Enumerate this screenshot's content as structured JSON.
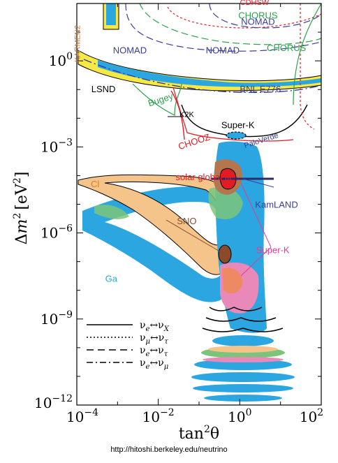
{
  "chart_data": {
    "type": "scatter",
    "xscale": "log",
    "yscale": "log",
    "xlim": [
      0.0001,
      100
    ],
    "ylim": [
      1e-12,
      100
    ],
    "xlabel_base": "tan",
    "xlabel_exp": "2",
    "xlabel_sym": "θ",
    "ylabel_delta": "Δ",
    "ylabel_m": "m",
    "ylabel_exp": "2",
    "ylabel_unit": "[eV",
    "ylabel_unit_exp": "2",
    "ylabel_close": "]",
    "xticks": [
      {
        "value": 0.0001,
        "base": "10",
        "exp": "−4"
      },
      {
        "value": 0.01,
        "base": "10",
        "exp": "−2"
      },
      {
        "value": 1,
        "base": "10",
        "exp": "0"
      },
      {
        "value": 100,
        "base": "10",
        "exp": "2"
      }
    ],
    "yticks": [
      {
        "value": 1,
        "base": "10",
        "exp": "0"
      },
      {
        "value": 0.001,
        "base": "10",
        "exp": "−3"
      },
      {
        "value": 1e-06,
        "base": "10",
        "exp": "−6"
      },
      {
        "value": 1e-09,
        "base": "10",
        "exp": "−9"
      },
      {
        "value": 1e-12,
        "base": "10",
        "exp": "−12"
      }
    ],
    "regions": [
      {
        "label": "Cl",
        "color": "#f5c48a",
        "label_color": "#e07a1f",
        "label_at": [
          0.00028,
          4e-05
        ]
      },
      {
        "label": "Ga",
        "color": "#2ca6e0",
        "label_color": "#2ca6e0",
        "label_at": [
          0.0007,
          2e-08
        ]
      },
      {
        "label": "SNO",
        "color": "#8b4a2b",
        "label_color": "#8b4a2b",
        "label_at": [
          0.05,
          2e-06
        ]
      },
      {
        "label": "solar global fit",
        "color": "#e31b23",
        "label_color": "#e31b23",
        "label_at": [
          0.13,
          7e-05
        ]
      },
      {
        "label": "Super-K",
        "color": "#e6398f",
        "label_color": "#e6398f",
        "label_at": [
          6.5,
          2e-07
        ]
      },
      {
        "label": "KamLAND",
        "color": "#3a3d98",
        "label_color": "#3a3d98",
        "label_at": [
          8.0,
          7.5e-06
        ]
      },
      {
        "label": "LSND",
        "color": "#2ca6e0",
        "label_color": "#000000",
        "label_at": [
          0.00045,
          0.08
        ]
      },
      {
        "label": "KARMEN2",
        "color": "#c47a3a",
        "label_color": "#c47a3a",
        "label_at": [
          0.00012,
          4.0
        ]
      },
      {
        "label": "NOMAD",
        "color": "#3a3d98",
        "label_color": "#3a3d98",
        "label_at": [
          0.002,
          1.8
        ]
      },
      {
        "label": "NOMAD",
        "color": "#3a3d98",
        "label_color": "#3a3d98",
        "label_at": [
          0.38,
          1.8
        ]
      },
      {
        "label": "NOMAD",
        "color": "#3a3d98",
        "label_color": "#3a3d98",
        "label_at": [
          2.8,
          18
        ]
      },
      {
        "label": "CHORUS",
        "color": "#2aa14a",
        "label_color": "#2aa14a",
        "label_at": [
          2.8,
          30
        ]
      },
      {
        "label": "CHORUS",
        "color": "#2aa14a",
        "label_color": "#2aa14a",
        "label_at": [
          14,
          2.2
        ]
      },
      {
        "label": "CDHSW",
        "color": "#e31b23",
        "label_color": "#e31b23",
        "label_at": [
          2.3,
          90
        ]
      },
      {
        "label": "BNL E776",
        "color": "#3a3d98",
        "label_color": "#3a3d98",
        "label_at": [
          3.2,
          0.08
        ]
      },
      {
        "label": "Bugey",
        "color": "#2aa14a",
        "label_color": "#2aa14a",
        "label_at": [
          0.012,
          0.035
        ]
      },
      {
        "label": "K2K",
        "color": "#000000",
        "label_color": "#000000",
        "label_at": [
          0.05,
          0.011
        ]
      },
      {
        "label": "Super-K",
        "color": "#000000",
        "label_color": "#000000",
        "label_at": [
          0.9,
          0.0045
        ]
      },
      {
        "label": "CHOOZ",
        "color": "#e31b23",
        "label_color": "#e31b23",
        "label_at": [
          0.08,
          0.0012
        ]
      },
      {
        "label": "PaloVerde",
        "color": "#3a3d98",
        "label_color": "#3a3d98",
        "label_at": [
          3.5,
          0.0014
        ]
      }
    ],
    "legend": {
      "placement": "bottom-left",
      "entries": [
        {
          "style": "solid",
          "nu": "ν",
          "a": "e",
          "b": "X",
          "arrow": "↔"
        },
        {
          "style": "dotted",
          "nu": "ν",
          "a": "μ",
          "b": "τ",
          "arrow": "↔"
        },
        {
          "style": "dashed",
          "nu": "ν",
          "a": "e",
          "b": "τ",
          "arrow": "↔"
        },
        {
          "style": "dashdot",
          "nu": "ν",
          "a": "e",
          "b": "μ",
          "arrow": "↔"
        }
      ]
    }
  },
  "credit": "http://hitoshi.berkeley.edu/neutrino"
}
